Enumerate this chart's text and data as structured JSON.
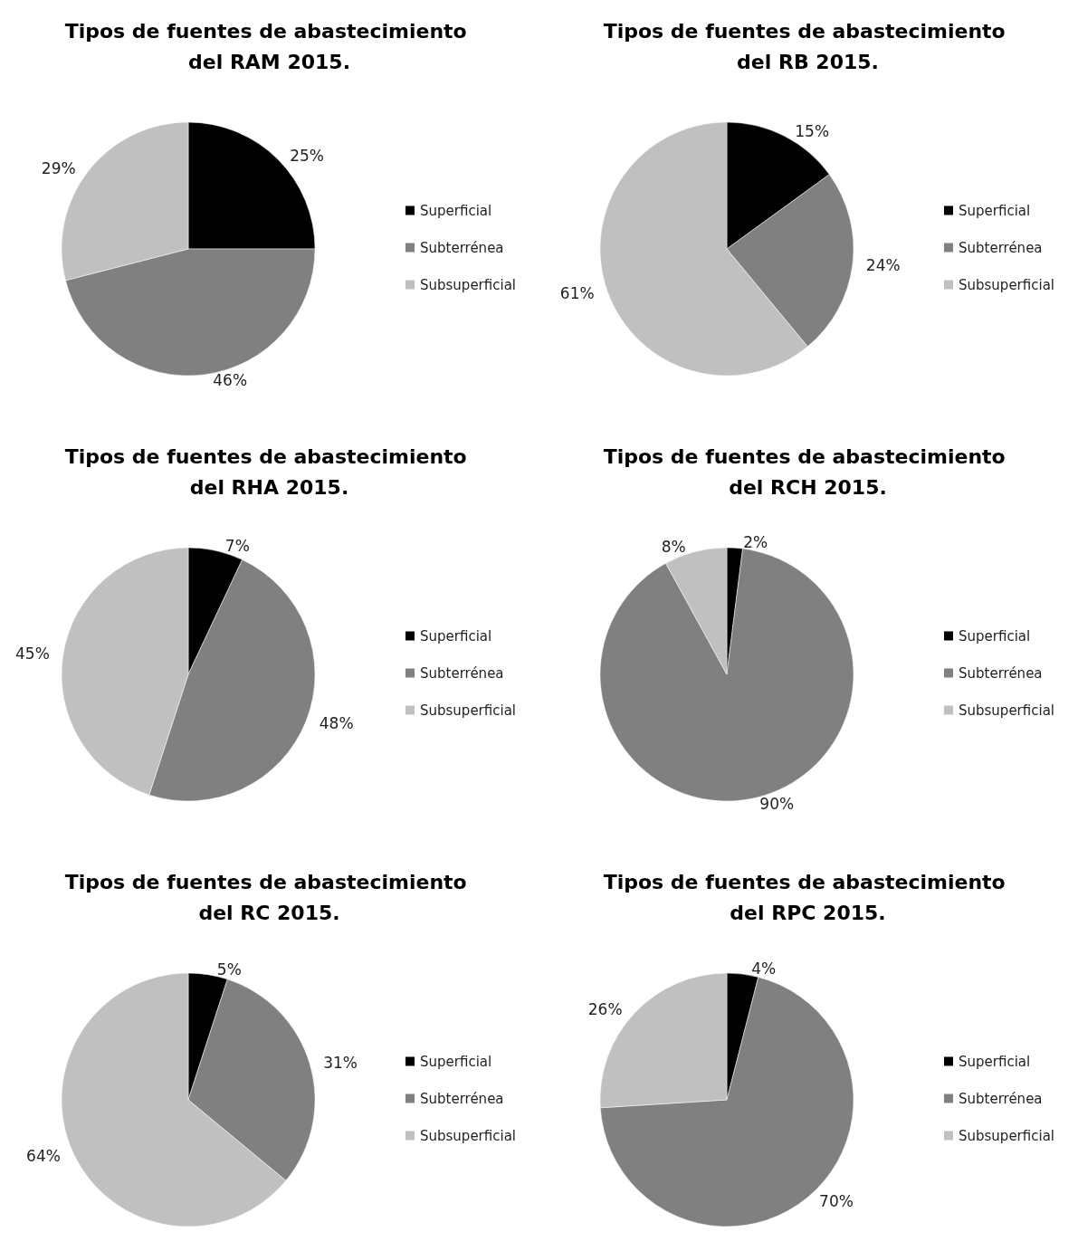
{
  "chart_data": [
    {
      "type": "pie",
      "title": "Tipos de fuentes de abastecimiento del RAM 2015.",
      "categories": [
        "Superficial",
        "Subterrénea",
        "Subsuperficial"
      ],
      "values": [
        25,
        46,
        29
      ],
      "value_labels": [
        "25%",
        "46%",
        "29%"
      ],
      "colors": [
        "#000000",
        "#808080",
        "#c0c0c0"
      ],
      "legend": "right"
    },
    {
      "type": "pie",
      "title": "Tipos de fuentes de abastecimiento del RB 2015.",
      "categories": [
        "Superficial",
        "Subterrénea",
        "Subsuperficial"
      ],
      "values": [
        15,
        24,
        61
      ],
      "value_labels": [
        "15%",
        "24%",
        "61%"
      ],
      "colors": [
        "#000000",
        "#808080",
        "#c0c0c0"
      ],
      "legend": "right"
    },
    {
      "type": "pie",
      "title": "Tipos de fuentes de abastecimiento del RHA 2015.",
      "categories": [
        "Superficial",
        "Subterrénea",
        "Subsuperficial"
      ],
      "values": [
        7,
        48,
        45
      ],
      "value_labels": [
        "7%",
        "48%",
        "45%"
      ],
      "colors": [
        "#000000",
        "#808080",
        "#c0c0c0"
      ],
      "legend": "right"
    },
    {
      "type": "pie",
      "title": "Tipos de fuentes de abastecimiento del RCH 2015.",
      "categories": [
        "Superficial",
        "Subterrénea",
        "Subsuperficial"
      ],
      "values": [
        2,
        90,
        8
      ],
      "value_labels": [
        "2%",
        "90%",
        "8%"
      ],
      "colors": [
        "#000000",
        "#808080",
        "#c0c0c0"
      ],
      "legend": "right"
    },
    {
      "type": "pie",
      "title": "Tipos de fuentes de abastecimiento del RC 2015.",
      "categories": [
        "Superficial",
        "Subterrénea",
        "Subsuperficial"
      ],
      "values": [
        5,
        31,
        64
      ],
      "value_labels": [
        "5%",
        "31%",
        "64%"
      ],
      "colors": [
        "#000000",
        "#808080",
        "#c0c0c0"
      ],
      "legend": "right"
    },
    {
      "type": "pie",
      "title": "Tipos de fuentes de abastecimiento del RPC 2015.",
      "categories": [
        "Superficial",
        "Subterrénea",
        "Subsuperficial"
      ],
      "values": [
        4,
        70,
        26
      ],
      "value_labels": [
        "4%",
        "70%",
        "26%"
      ],
      "colors": [
        "#000000",
        "#808080",
        "#c0c0c0"
      ],
      "legend": "right"
    }
  ]
}
